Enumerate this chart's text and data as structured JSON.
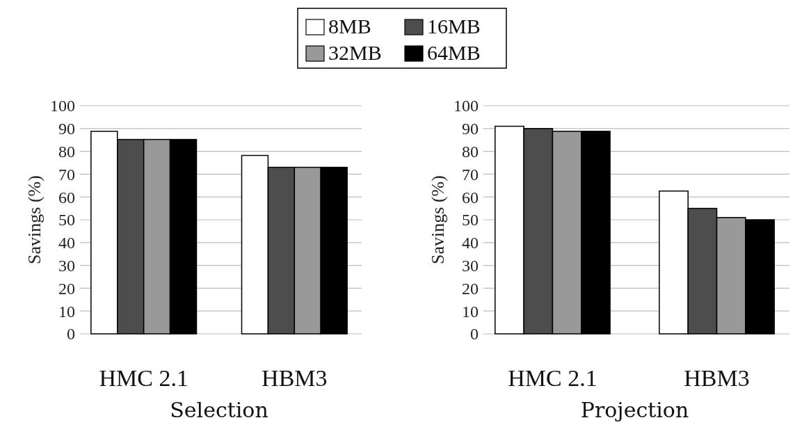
{
  "chart_data": [
    {
      "type": "bar",
      "title": "Selection",
      "ylabel": "Savings (%)",
      "categories": [
        "HMC 2.1",
        "HBM3"
      ],
      "series": [
        {
          "name": "8MB",
          "color": "#ffffff",
          "values": [
            88.8,
            78.2
          ]
        },
        {
          "name": "16MB",
          "color": "#4d4d4d",
          "values": [
            85.2,
            73
          ]
        },
        {
          "name": "32MB",
          "color": "#999999",
          "values": [
            85.2,
            73
          ]
        },
        {
          "name": "64MB",
          "color": "#000000",
          "values": [
            85.2,
            73
          ]
        }
      ],
      "ylim": [
        0,
        100
      ],
      "yticks": [
        0,
        10,
        20,
        30,
        40,
        50,
        60,
        70,
        80,
        90,
        100
      ],
      "grid": "y",
      "legend": "top"
    },
    {
      "type": "bar",
      "title": "Projection",
      "ylabel": "Savings (%)",
      "categories": [
        "HMC 2.1",
        "HBM3"
      ],
      "series": [
        {
          "color": "#ffffff",
          "values": [
            91,
            62.6
          ]
        },
        {
          "color": "#4d4d4d",
          "values": [
            90,
            55
          ]
        },
        {
          "color": "#999999",
          "values": [
            88.8,
            51
          ]
        },
        {
          "color": "#000000",
          "values": [
            88.8,
            50
          ]
        }
      ],
      "ylim": [
        0,
        100
      ],
      "yticks": [
        0,
        10,
        20,
        30,
        40,
        50,
        60,
        70,
        80,
        90,
        100
      ],
      "grid": "y"
    }
  ]
}
